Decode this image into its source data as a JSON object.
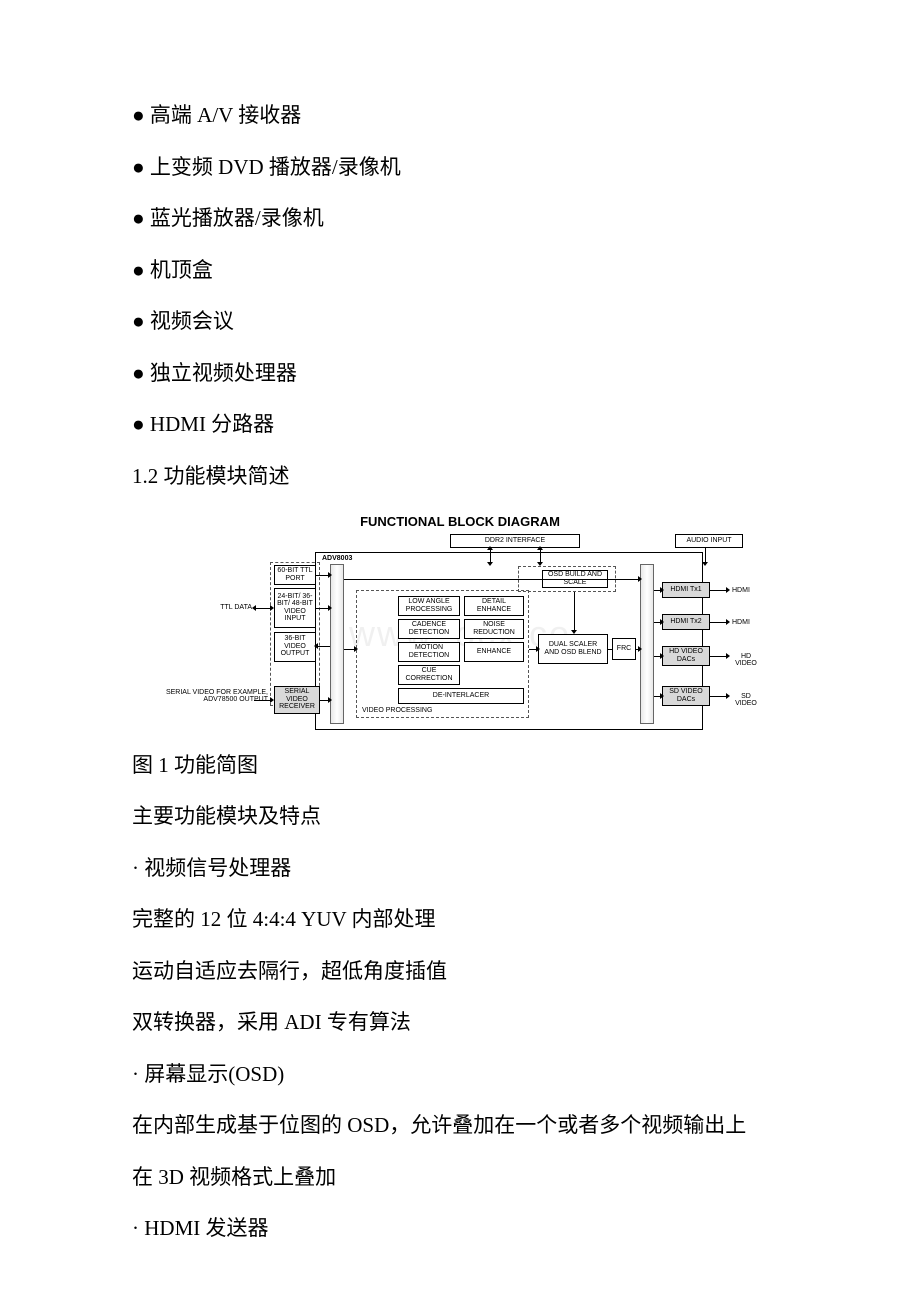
{
  "bullets": [
    "● 高端 A/V 接收器",
    "● 上变频 DVD 播放器/录像机",
    "● 蓝光播放器/录像机",
    "● 机顶盒",
    "● 视频会议",
    "● 独立视频处理器",
    "● HDMI 分路器"
  ],
  "section_heading": "1.2 功能模块简述",
  "diagram": {
    "title": "FUNCTIONAL BLOCK DIAGRAM",
    "background": "#ffffff",
    "box_border": "#000000",
    "grey_fill": "#d9d9d9",
    "dashed_border": "#555555",
    "watermark": "www.        ocx.co",
    "chip_label": "ADV8003",
    "top_boxes": {
      "ddr2": "DDR2 INTERFACE",
      "audio": "AUDIO INPUT"
    },
    "left_inputs": {
      "ttl_port": "60-BIT\nTTL PORT",
      "video_input": "24-BIT/\n36-BIT/\n48-BIT\nVIDEO\nINPUT",
      "video_output": "36-BIT\nVIDEO\nOUTPUT",
      "serial_rx": "SERIAL\nVIDEO\nRECEIVER",
      "ttl_data_label": "TTL DATA",
      "serial_label": "SERIAL VIDEO\nFOR EXAMPLE, ADV78500\nOUTPUT"
    },
    "vp_group_label": "VIDEO PROCESSING",
    "vp_boxes": {
      "low_angle": "LOW ANGLE\nPROCESSING",
      "cadence": "CADENCE\nDETECTION",
      "motion": "MOTION\nDETECTION",
      "cue": "CUE\nCORRECTION",
      "deint": "DE-INTERLACER",
      "detail": "DETAIL\nENHANCE",
      "noise": "NOISE\nREDUCTION",
      "enhance": "ENHANCE"
    },
    "osd_box": "OSD BUILD\nAND SCALE",
    "dual_scaler": "DUAL SCALER\nAND\nOSD BLEND",
    "frc": "FRC",
    "outputs": {
      "hdmi_tx1": "HDMI Tx1",
      "hdmi_tx2": "HDMI Tx2",
      "hd_dac": "HD VIDEO\nDACs",
      "sd_dac": "SD VIDEO\nDACs"
    },
    "out_labels": {
      "hdmi": "HDMI",
      "hd": "HD VIDEO",
      "sd": "SD VIDEO"
    }
  },
  "after_diagram": [
    "图 1 功能简图",
    "主要功能模块及特点",
    "· 视频信号处理器",
    "完整的 12 位 4:4:4 YUV 内部处理",
    "运动自适应去隔行，超低角度插值",
    "双转换器，采用 ADI 专有算法",
    "· 屏幕显示(OSD)"
  ],
  "wrapped_para": "在内部生成基于位图的 OSD，允许叠加在一个或者多个视频输出上",
  "tail": [
    "在 3D 视频格式上叠加",
    "· HDMI 发送器"
  ]
}
